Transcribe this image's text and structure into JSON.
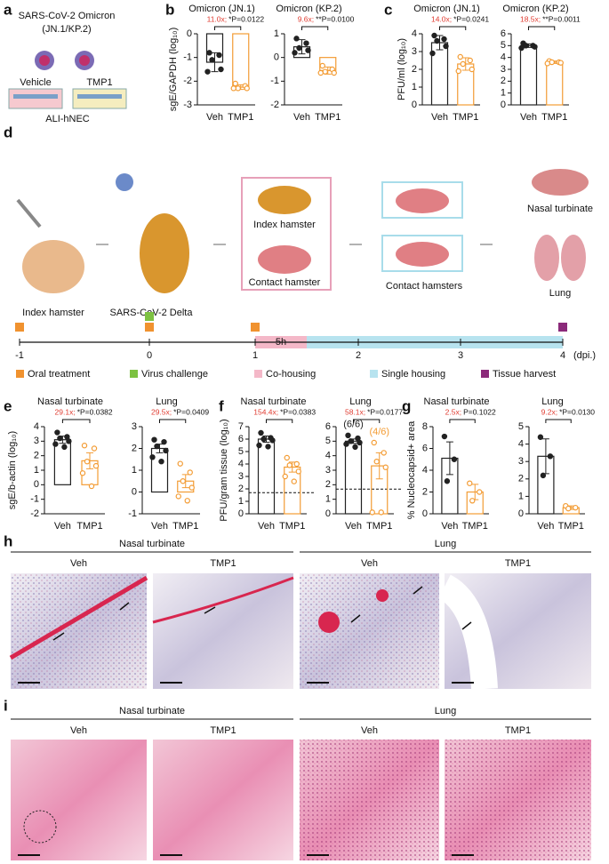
{
  "panel_labels": [
    "a",
    "b",
    "c",
    "d",
    "e",
    "f",
    "g",
    "h",
    "i"
  ],
  "schematic_a": {
    "title": "SARS-CoV-2 Omicron",
    "subtitle": "(JN.1/KP.2)",
    "left": "Vehicle",
    "right": "TMP1",
    "bottom": "ALI-hNEC"
  },
  "schematic_d": {
    "labels": [
      "Index hamster",
      "SARS-CoV-2 Delta",
      "Index hamster",
      "Contact hamster",
      "Contact hamsters",
      "Nasal turbinate",
      "Lung"
    ],
    "timeline_ticks": [
      "-1",
      "0",
      "1",
      "2",
      "3",
      "4"
    ],
    "timeline_unit": "(dpi.)",
    "cohousing_label": "5h",
    "legend": [
      {
        "name": "Oral treatment",
        "color": "#f0922f"
      },
      {
        "name": "Virus challenge",
        "color": "#7dc242"
      },
      {
        "name": "Co-housing",
        "color": "#f4b8c8"
      },
      {
        "name": "Single housing",
        "color": "#b7e3ef"
      },
      {
        "name": "Tissue harvest",
        "color": "#8b2a7a"
      }
    ]
  },
  "histology_h": {
    "groups": [
      "Nasal turbinate",
      "Lung"
    ],
    "columns": [
      "Veh",
      "TMP1",
      "Veh",
      "TMP1"
    ]
  },
  "histology_i": {
    "groups": [
      "Nasal turbinate",
      "Lung"
    ],
    "columns": [
      "Veh",
      "TMP1",
      "Veh",
      "TMP1"
    ]
  },
  "chart_data": [
    {
      "type": "bar",
      "title": "Omicron (JN.1)",
      "ylabel": "sgE/GAPDH (log₁₀)",
      "categories": [
        "Veh",
        "TMP1"
      ],
      "colors": [
        "#222222",
        "#f39c34"
      ],
      "values": [
        -1.2,
        -2.25
      ],
      "errors": [
        0.4,
        0.1
      ],
      "points": [
        [
          -0.8,
          -0.9,
          -1.1,
          -1.5,
          -1.6
        ],
        [
          -2.1,
          -2.2,
          -2.3,
          -2.3,
          -2.3
        ]
      ],
      "fold": "11.0x;",
      "p": "*P=0.0122",
      "ylim": [
        -3,
        0
      ],
      "yticks": [
        -3,
        -2,
        -1,
        0
      ]
    },
    {
      "type": "bar",
      "title": "Omicron (KP.2)",
      "categories": [
        "Veh",
        "TMP1"
      ],
      "colors": [
        "#222222",
        "#f39c34"
      ],
      "values": [
        0.45,
        -0.55
      ],
      "errors": [
        0.3,
        0.15
      ],
      "points": [
        [
          0.8,
          0.6,
          0.4,
          0.3,
          0.2
        ],
        [
          -0.35,
          -0.5,
          -0.6,
          -0.65,
          -0.65
        ]
      ],
      "fold": "9.6x;",
      "p": "**P=0.0100",
      "ylim": [
        -2,
        1
      ],
      "yticks": [
        -2,
        -1,
        0,
        1
      ]
    },
    {
      "type": "bar",
      "title": "Omicron (JN.1)",
      "ylabel": "PFU/ml (log₁₀)",
      "categories": [
        "Veh",
        "TMP1"
      ],
      "colors": [
        "#222222",
        "#f39c34"
      ],
      "values": [
        3.5,
        2.3
      ],
      "errors": [
        0.4,
        0.35
      ],
      "points": [
        [
          3.9,
          3.7,
          3.6,
          3.3,
          2.9
        ],
        [
          2.7,
          2.5,
          2.3,
          2.0,
          1.9
        ]
      ],
      "fold": "14.0x;",
      "p": "*P=0.0241",
      "ylim": [
        0,
        4
      ],
      "yticks": [
        0,
        1,
        2,
        3,
        4
      ]
    },
    {
      "type": "bar",
      "title": "Omicron (KP.2)",
      "categories": [
        "Veh",
        "TMP1"
      ],
      "colors": [
        "#222222",
        "#f39c34"
      ],
      "values": [
        5.0,
        3.6
      ],
      "errors": [
        0.15,
        0.1
      ],
      "points": [
        [
          5.2,
          5.0,
          5.0,
          4.9,
          4.8
        ],
        [
          3.7,
          3.6,
          3.6,
          3.55,
          3.5
        ]
      ],
      "fold": "18.5x;",
      "p": "**P=0.0011",
      "ylim": [
        0,
        6
      ],
      "yticks": [
        0,
        1,
        2,
        3,
        4,
        5,
        6
      ]
    },
    {
      "type": "bar",
      "title": "Nasal turbinate",
      "ylabel": "sgE/b-actin (log₁₀)",
      "categories": [
        "Veh",
        "TMP1"
      ],
      "colors": [
        "#222222",
        "#f39c34"
      ],
      "values": [
        3.1,
        1.65
      ],
      "errors": [
        0.25,
        0.55
      ],
      "points": [
        [
          3.6,
          3.3,
          3.2,
          3.0,
          2.8,
          2.6
        ],
        [
          2.7,
          2.5,
          1.6,
          1.3,
          0.8,
          -0.1
        ]
      ],
      "fold": "29.1x;",
      "p": "*P=0.0382",
      "ylim": [
        -2,
        4
      ],
      "yticks": [
        -2,
        -1,
        0,
        1,
        2,
        3,
        4
      ]
    },
    {
      "type": "bar",
      "title": "Lung",
      "categories": [
        "Veh",
        "TMP1"
      ],
      "colors": [
        "#222222",
        "#f39c34"
      ],
      "values": [
        2.0,
        0.5
      ],
      "errors": [
        0.2,
        0.3
      ],
      "points": [
        [
          2.4,
          2.3,
          2.1,
          1.9,
          1.6,
          1.4
        ],
        [
          1.3,
          0.9,
          0.5,
          0.2,
          -0.2,
          -0.4
        ]
      ],
      "fold": "29.5x;",
      "p": "*P=0.0409",
      "ylim": [
        -1,
        3
      ],
      "yticks": [
        -1,
        0,
        1,
        2,
        3
      ]
    },
    {
      "type": "bar",
      "title": "Nasal turbinate",
      "ylabel": "PFU/gram tissue (log₁₀)",
      "categories": [
        "Veh",
        "TMP1"
      ],
      "colors": [
        "#222222",
        "#f39c34"
      ],
      "values": [
        6.0,
        3.75
      ],
      "errors": [
        0.25,
        0.4
      ],
      "points": [
        [
          6.5,
          6.1,
          6.0,
          5.9,
          5.5,
          5.4
        ],
        [
          4.5,
          4.0,
          3.9,
          3.4,
          3.0,
          2.6
        ]
      ],
      "fold": "154.4x;",
      "p": "*P=0.0383",
      "reference_line": 1.7,
      "ylim": [
        0,
        7
      ],
      "yticks": [
        0,
        1,
        2,
        3,
        4,
        5,
        6,
        7
      ]
    },
    {
      "type": "bar",
      "title": "Lung",
      "categories": [
        "Veh",
        "TMP1"
      ],
      "colors": [
        "#222222",
        "#f39c34"
      ],
      "values": [
        5.0,
        3.3
      ],
      "errors": [
        0.15,
        0.9
      ],
      "points": [
        [
          5.4,
          5.2,
          5.0,
          4.9,
          4.8,
          4.6
        ],
        [
          4.9,
          4.2,
          3.6,
          3.2,
          0.1,
          0.1
        ]
      ],
      "group_labels": [
        "(6/6)",
        "(4/6)"
      ],
      "fold": "58.1x;",
      "p": "*P=0.0177",
      "reference_line": 1.7,
      "ylim": [
        0,
        6
      ],
      "yticks": [
        0,
        1,
        2,
        3,
        4,
        5,
        6
      ]
    },
    {
      "type": "bar",
      "title": "Nasal turbinate",
      "ylabel": "% Nucleocapsid+ area",
      "categories": [
        "Veh",
        "TMP1"
      ],
      "colors": [
        "#222222",
        "#f39c34"
      ],
      "values": [
        5.1,
        2.0
      ],
      "errors": [
        1.5,
        0.7
      ],
      "points": [
        [
          7.1,
          5.0,
          3.0
        ],
        [
          2.8,
          2.0,
          1.2
        ]
      ],
      "fold": "2.5x;",
      "p": "P=0.1022",
      "ylim": [
        0,
        8
      ],
      "yticks": [
        0,
        2,
        4,
        6,
        8
      ]
    },
    {
      "type": "bar",
      "title": "Lung",
      "categories": [
        "Veh",
        "TMP1"
      ],
      "colors": [
        "#222222",
        "#f39c34"
      ],
      "values": [
        3.3,
        0.35
      ],
      "errors": [
        1.0,
        0.1
      ],
      "points": [
        [
          4.4,
          3.3,
          2.2
        ],
        [
          0.45,
          0.35,
          0.3
        ]
      ],
      "fold": "9.2x;",
      "p": "*P=0.0130",
      "ylim": [
        0,
        5
      ],
      "yticks": [
        0,
        1,
        2,
        3,
        4,
        5
      ]
    }
  ]
}
